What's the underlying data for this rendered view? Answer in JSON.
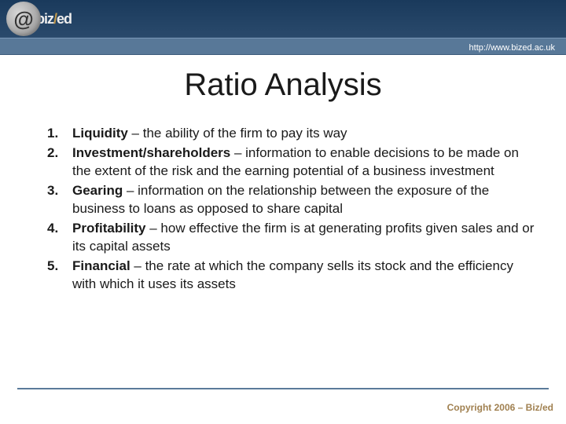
{
  "header": {
    "logo_biz": "biz",
    "logo_slash": "/",
    "logo_ed": "ed",
    "logo_at": "@",
    "url": "http://www.bized.ac.uk"
  },
  "title": "Ratio Analysis",
  "items": [
    {
      "term": "Liquidity",
      "desc": " – the ability of the firm to pay its way"
    },
    {
      "term": "Investment/shareholders",
      "desc": " – information to enable decisions to be made on the extent of the risk and the earning potential of a business investment"
    },
    {
      "term": "Gearing",
      "desc": " – information on the relationship between the exposure of the business to loans as opposed to share capital"
    },
    {
      "term": "Profitability",
      "desc": " – how effective the firm is at generating profits given sales and or its capital assets"
    },
    {
      "term": "Financial",
      "desc": " – the rate at which the company sells its stock and the efficiency with which it uses its assets"
    }
  ],
  "footer": {
    "copyright": "Copyright 2006 – Biz/ed"
  },
  "styling": {
    "slide_width": 720,
    "slide_height": 540,
    "header_bg_top": "#1a3a5c",
    "header_bg_bottom": "#2a4a6c",
    "url_bar_bg": "#587898",
    "url_text_color": "#ffffff",
    "title_fontsize": 40,
    "title_color": "#1a1a1a",
    "body_fontsize": 17,
    "body_color": "#1a1a1a",
    "footer_line_color": "#5a7a9a",
    "copyright_color": "#a08050",
    "copyright_fontsize": 12,
    "font_family": "Verdana"
  }
}
